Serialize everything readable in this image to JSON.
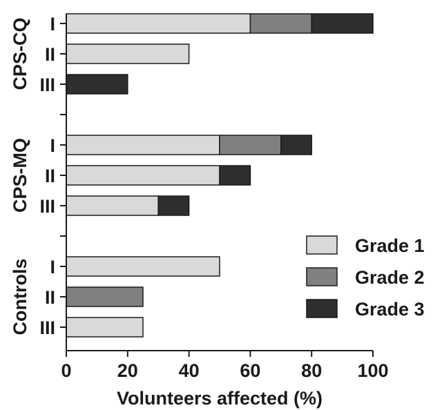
{
  "chart_data": {
    "type": "bar",
    "orientation": "horizontal",
    "stacked": true,
    "title": "",
    "xlabel": "Volunteers affected (%)",
    "ylabel": "",
    "xlim": [
      0,
      100
    ],
    "xticks": [
      0,
      20,
      40,
      60,
      80,
      100
    ],
    "grid": false,
    "legend_position": "bottom-right",
    "series": [
      {
        "name": "Grade 1",
        "color": "#d9d9d9"
      },
      {
        "name": "Grade 2",
        "color": "#808080"
      },
      {
        "name": "Grade 3",
        "color": "#2e2e2e"
      }
    ],
    "groups": [
      {
        "name": "CPS-CQ",
        "rows": [
          {
            "label": "I",
            "values": [
              60,
              20,
              20
            ]
          },
          {
            "label": "II",
            "values": [
              40,
              0,
              0
            ]
          },
          {
            "label": "III",
            "values": [
              0,
              0,
              20
            ]
          }
        ]
      },
      {
        "name": "CPS-MQ",
        "rows": [
          {
            "label": "I",
            "values": [
              50,
              20,
              10
            ]
          },
          {
            "label": "II",
            "values": [
              50,
              0,
              10
            ]
          },
          {
            "label": "III",
            "values": [
              30,
              0,
              10
            ]
          }
        ]
      },
      {
        "name": "Controls",
        "rows": [
          {
            "label": "I",
            "values": [
              50,
              0,
              0
            ]
          },
          {
            "label": "II",
            "values": [
              0,
              25,
              0
            ]
          },
          {
            "label": "III",
            "values": [
              25,
              0,
              0
            ]
          }
        ]
      }
    ]
  }
}
